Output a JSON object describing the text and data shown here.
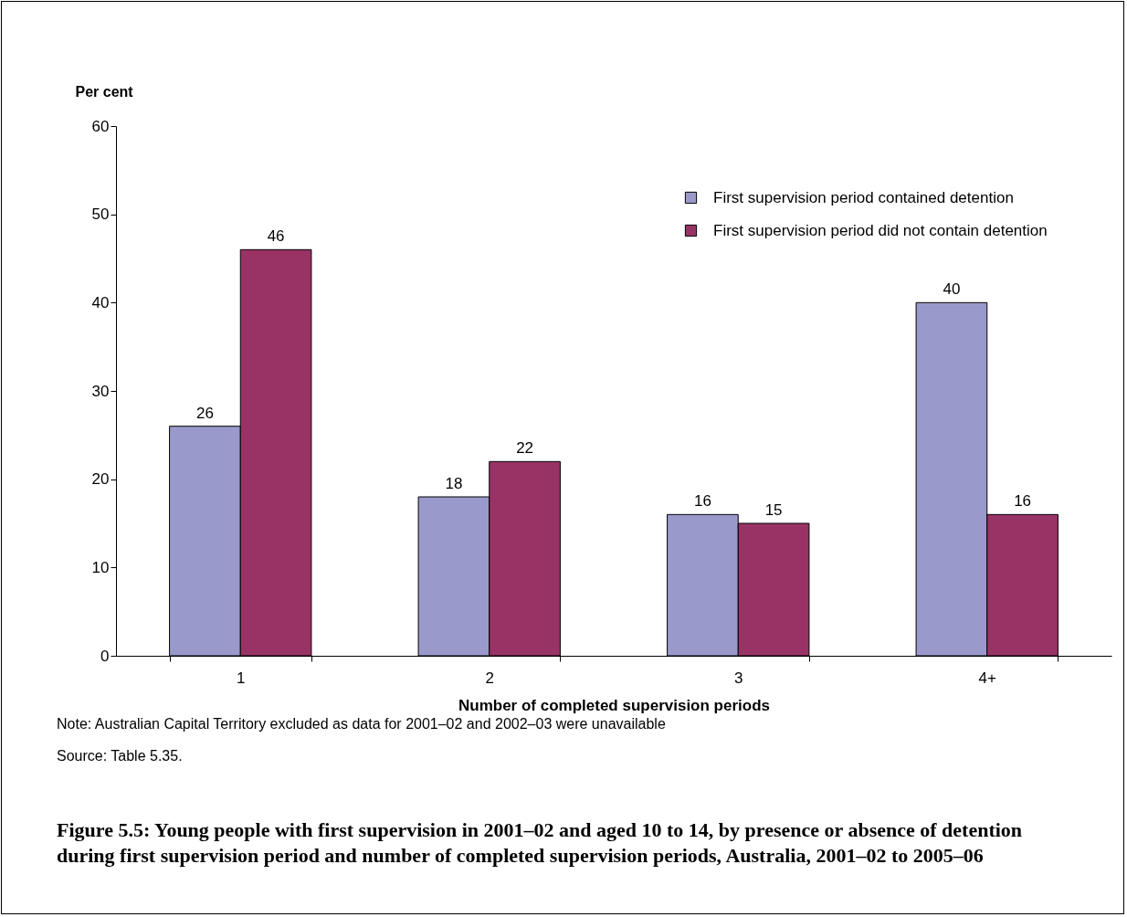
{
  "chart_data": {
    "type": "bar",
    "title": "Figure 5.5: Young people with first supervision in 2001–02 and aged 10 to 14, by presence or absence of detention during first supervision period and number of completed supervision periods, Australia, 2001–02 to 2005–06",
    "xlabel": "Number of completed supervision periods",
    "ylabel": "Per cent",
    "categories": [
      "1",
      "2",
      "3",
      "4+"
    ],
    "series": [
      {
        "name": "First supervision period contained detention",
        "color": "#9999cc",
        "values": [
          26,
          18,
          16,
          40
        ]
      },
      {
        "name": "First supervision period did not contain detention",
        "color": "#993366",
        "values": [
          46,
          22,
          15,
          16
        ]
      }
    ],
    "ylim": [
      0,
      60
    ],
    "yticks": [
      0,
      10,
      20,
      30,
      40,
      50,
      60
    ],
    "grid": false,
    "legend": "top right",
    "data_labels": true,
    "annotations": [
      "Note: Australian Capital Territory excluded as data for 2001–02 and 2002–03 were unavailable",
      "Source: Table 5.35."
    ]
  }
}
